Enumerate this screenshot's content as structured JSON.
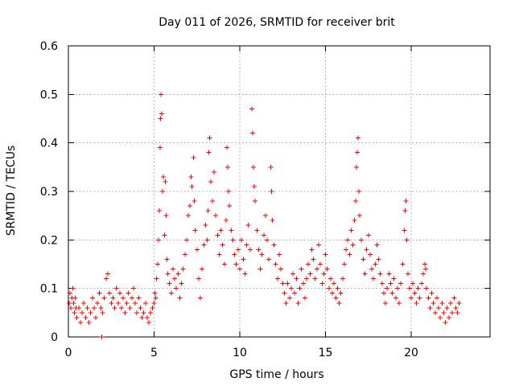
{
  "chart_data": {
    "type": "scatter",
    "title": "Day 011 of 2026, SRMTID for receiver brit",
    "xlabel": "GPS time / hours",
    "ylabel": "SRMTID / TECUs",
    "xlim": [
      0,
      24.6
    ],
    "ylim": [
      0,
      0.6
    ],
    "xticks": [
      0,
      5,
      10,
      15,
      20
    ],
    "xtick_labels": [
      "0",
      "5",
      "10",
      "15",
      "20"
    ],
    "yticks": [
      0,
      0.1,
      0.2,
      0.3,
      0.4,
      0.5,
      0.6
    ],
    "ytick_labels": [
      "0",
      "0.1",
      "0.2",
      "0.3",
      "0.4",
      "0.5",
      "0.6"
    ],
    "grid": true,
    "marker": "plus",
    "marker_color": "#ff0000",
    "series": [
      {
        "name": "SRMTID",
        "points": [
          [
            0.05,
            0.07
          ],
          [
            0.1,
            0.09
          ],
          [
            0.15,
            0.06
          ],
          [
            0.2,
            0.08
          ],
          [
            0.25,
            0.1
          ],
          [
            0.3,
            0.07
          ],
          [
            0.35,
            0.05
          ],
          [
            0.4,
            0.08
          ],
          [
            0.45,
            0.06
          ],
          [
            0.5,
            0.04
          ],
          [
            0.6,
            0.06
          ],
          [
            0.7,
            0.03
          ],
          [
            0.8,
            0.05
          ],
          [
            0.9,
            0.07
          ],
          [
            1.0,
            0.04
          ],
          [
            1.1,
            0.06
          ],
          [
            1.2,
            0.03
          ],
          [
            1.3,
            0.05
          ],
          [
            1.4,
            0.08
          ],
          [
            1.5,
            0.06
          ],
          [
            1.6,
            0.04
          ],
          [
            1.7,
            0.07
          ],
          [
            1.8,
            0.09
          ],
          [
            1.9,
            0.06
          ],
          [
            1.95,
            0.0
          ],
          [
            2.0,
            0.05
          ],
          [
            2.1,
            0.08
          ],
          [
            2.2,
            0.12
          ],
          [
            2.3,
            0.13
          ],
          [
            2.4,
            0.09
          ],
          [
            2.5,
            0.07
          ],
          [
            2.6,
            0.08
          ],
          [
            2.7,
            0.06
          ],
          [
            2.8,
            0.1
          ],
          [
            2.9,
            0.07
          ],
          [
            3.0,
            0.09
          ],
          [
            3.1,
            0.06
          ],
          [
            3.2,
            0.08
          ],
          [
            3.3,
            0.05
          ],
          [
            3.4,
            0.07
          ],
          [
            3.5,
            0.09
          ],
          [
            3.6,
            0.06
          ],
          [
            3.7,
            0.08
          ],
          [
            3.8,
            0.1
          ],
          [
            3.9,
            0.07
          ],
          [
            4.0,
            0.05
          ],
          [
            4.1,
            0.08
          ],
          [
            4.2,
            0.06
          ],
          [
            4.3,
            0.04
          ],
          [
            4.4,
            0.05
          ],
          [
            4.5,
            0.07
          ],
          [
            4.6,
            0.04
          ],
          [
            4.7,
            0.03
          ],
          [
            4.8,
            0.05
          ],
          [
            4.9,
            0.06
          ],
          [
            5.0,
            0.07
          ],
          [
            5.05,
            0.09
          ],
          [
            5.1,
            0.08
          ],
          [
            5.15,
            0.12
          ],
          [
            5.2,
            0.15
          ],
          [
            5.25,
            0.2
          ],
          [
            5.3,
            0.26
          ],
          [
            5.35,
            0.39
          ],
          [
            5.38,
            0.45
          ],
          [
            5.4,
            0.5
          ],
          [
            5.45,
            0.46
          ],
          [
            5.5,
            0.3
          ],
          [
            5.55,
            0.33
          ],
          [
            5.6,
            0.21
          ],
          [
            5.65,
            0.32
          ],
          [
            5.7,
            0.25
          ],
          [
            5.75,
            0.16
          ],
          [
            5.8,
            0.13
          ],
          [
            5.9,
            0.11
          ],
          [
            6.0,
            0.09
          ],
          [
            6.1,
            0.14
          ],
          [
            6.2,
            0.12
          ],
          [
            6.3,
            0.1
          ],
          [
            6.4,
            0.13
          ],
          [
            6.5,
            0.08
          ],
          [
            6.6,
            0.11
          ],
          [
            6.7,
            0.14
          ],
          [
            6.8,
            0.17
          ],
          [
            6.9,
            0.2
          ],
          [
            7.0,
            0.25
          ],
          [
            7.1,
            0.27
          ],
          [
            7.15,
            0.33
          ],
          [
            7.2,
            0.31
          ],
          [
            7.3,
            0.37
          ],
          [
            7.35,
            0.28
          ],
          [
            7.4,
            0.22
          ],
          [
            7.5,
            0.18
          ],
          [
            7.6,
            0.12
          ],
          [
            7.7,
            0.08
          ],
          [
            7.8,
            0.14
          ],
          [
            7.9,
            0.19
          ],
          [
            8.0,
            0.23
          ],
          [
            8.1,
            0.2
          ],
          [
            8.15,
            0.26
          ],
          [
            8.2,
            0.38
          ],
          [
            8.25,
            0.41
          ],
          [
            8.3,
            0.32
          ],
          [
            8.4,
            0.28
          ],
          [
            8.5,
            0.34
          ],
          [
            8.6,
            0.25
          ],
          [
            8.7,
            0.21
          ],
          [
            8.8,
            0.17
          ],
          [
            8.9,
            0.22
          ],
          [
            9.0,
            0.19
          ],
          [
            9.1,
            0.15
          ],
          [
            9.2,
            0.24
          ],
          [
            9.25,
            0.39
          ],
          [
            9.3,
            0.35
          ],
          [
            9.35,
            0.3
          ],
          [
            9.4,
            0.27
          ],
          [
            9.5,
            0.22
          ],
          [
            9.6,
            0.2
          ],
          [
            9.7,
            0.17
          ],
          [
            9.8,
            0.15
          ],
          [
            9.9,
            0.18
          ],
          [
            10.0,
            0.14
          ],
          [
            10.1,
            0.2
          ],
          [
            10.2,
            0.16
          ],
          [
            10.3,
            0.13
          ],
          [
            10.4,
            0.19
          ],
          [
            10.5,
            0.23
          ],
          [
            10.6,
            0.18
          ],
          [
            10.7,
            0.47
          ],
          [
            10.75,
            0.42
          ],
          [
            10.8,
            0.35
          ],
          [
            10.85,
            0.31
          ],
          [
            10.9,
            0.28
          ],
          [
            11.0,
            0.22
          ],
          [
            11.1,
            0.18
          ],
          [
            11.2,
            0.14
          ],
          [
            11.3,
            0.17
          ],
          [
            11.4,
            0.21
          ],
          [
            11.5,
            0.25
          ],
          [
            11.6,
            0.2
          ],
          [
            11.7,
            0.16
          ],
          [
            11.8,
            0.35
          ],
          [
            11.85,
            0.3
          ],
          [
            11.9,
            0.24
          ],
          [
            12.0,
            0.19
          ],
          [
            12.1,
            0.15
          ],
          [
            12.2,
            0.12
          ],
          [
            12.3,
            0.17
          ],
          [
            12.4,
            0.14
          ],
          [
            12.5,
            0.11
          ],
          [
            12.6,
            0.09
          ],
          [
            12.7,
            0.07
          ],
          [
            12.8,
            0.11
          ],
          [
            12.9,
            0.08
          ],
          [
            13.0,
            0.1
          ],
          [
            13.1,
            0.13
          ],
          [
            13.2,
            0.09
          ],
          [
            13.3,
            0.12
          ],
          [
            13.4,
            0.07
          ],
          [
            13.5,
            0.1
          ],
          [
            13.6,
            0.14
          ],
          [
            13.7,
            0.11
          ],
          [
            13.8,
            0.08
          ],
          [
            13.9,
            0.12
          ],
          [
            14.0,
            0.15
          ],
          [
            14.1,
            0.13
          ],
          [
            14.2,
            0.18
          ],
          [
            14.3,
            0.16
          ],
          [
            14.4,
            0.12
          ],
          [
            14.5,
            0.14
          ],
          [
            14.6,
            0.19
          ],
          [
            14.7,
            0.15
          ],
          [
            14.8,
            0.11
          ],
          [
            14.9,
            0.13
          ],
          [
            15.0,
            0.17
          ],
          [
            15.1,
            0.14
          ],
          [
            15.2,
            0.1
          ],
          [
            15.3,
            0.12
          ],
          [
            15.4,
            0.09
          ],
          [
            15.5,
            0.11
          ],
          [
            15.6,
            0.08
          ],
          [
            15.7,
            0.1
          ],
          [
            15.8,
            0.07
          ],
          [
            15.9,
            0.09
          ],
          [
            16.0,
            0.12
          ],
          [
            16.1,
            0.15
          ],
          [
            16.2,
            0.18
          ],
          [
            16.3,
            0.2
          ],
          [
            16.4,
            0.17
          ],
          [
            16.5,
            0.22
          ],
          [
            16.6,
            0.19
          ],
          [
            16.7,
            0.24
          ],
          [
            16.75,
            0.28
          ],
          [
            16.8,
            0.35
          ],
          [
            16.85,
            0.38
          ],
          [
            16.9,
            0.41
          ],
          [
            16.95,
            0.3
          ],
          [
            17.0,
            0.25
          ],
          [
            17.1,
            0.2
          ],
          [
            17.2,
            0.16
          ],
          [
            17.3,
            0.13
          ],
          [
            17.4,
            0.18
          ],
          [
            17.5,
            0.21
          ],
          [
            17.6,
            0.17
          ],
          [
            17.7,
            0.14
          ],
          [
            17.8,
            0.12
          ],
          [
            17.9,
            0.15
          ],
          [
            18.0,
            0.19
          ],
          [
            18.1,
            0.16
          ],
          [
            18.2,
            0.13
          ],
          [
            18.3,
            0.11
          ],
          [
            18.4,
            0.09
          ],
          [
            18.5,
            0.07
          ],
          [
            18.6,
            0.1
          ],
          [
            18.7,
            0.13
          ],
          [
            18.8,
            0.11
          ],
          [
            18.9,
            0.09
          ],
          [
            19.0,
            0.12
          ],
          [
            19.1,
            0.08
          ],
          [
            19.2,
            0.1
          ],
          [
            19.3,
            0.07
          ],
          [
            19.4,
            0.11
          ],
          [
            19.5,
            0.15
          ],
          [
            19.6,
            0.22
          ],
          [
            19.65,
            0.26
          ],
          [
            19.7,
            0.28
          ],
          [
            19.75,
            0.2
          ],
          [
            19.8,
            0.13
          ],
          [
            19.9,
            0.1
          ],
          [
            20.0,
            0.08
          ],
          [
            20.1,
            0.11
          ],
          [
            20.2,
            0.09
          ],
          [
            20.3,
            0.07
          ],
          [
            20.4,
            0.1
          ],
          [
            20.5,
            0.08
          ],
          [
            20.6,
            0.11
          ],
          [
            20.7,
            0.13
          ],
          [
            20.8,
            0.15
          ],
          [
            20.85,
            0.14
          ],
          [
            20.9,
            0.1
          ],
          [
            21.0,
            0.08
          ],
          [
            21.1,
            0.06
          ],
          [
            21.2,
            0.09
          ],
          [
            21.3,
            0.07
          ],
          [
            21.4,
            0.05
          ],
          [
            21.5,
            0.08
          ],
          [
            21.6,
            0.06
          ],
          [
            21.7,
            0.04
          ],
          [
            21.8,
            0.07
          ],
          [
            21.9,
            0.05
          ],
          [
            22.0,
            0.03
          ],
          [
            22.1,
            0.06
          ],
          [
            22.2,
            0.04
          ],
          [
            22.3,
            0.07
          ],
          [
            22.4,
            0.05
          ],
          [
            22.5,
            0.08
          ],
          [
            22.6,
            0.06
          ],
          [
            22.7,
            0.05
          ],
          [
            22.8,
            0.07
          ]
        ]
      }
    ]
  }
}
